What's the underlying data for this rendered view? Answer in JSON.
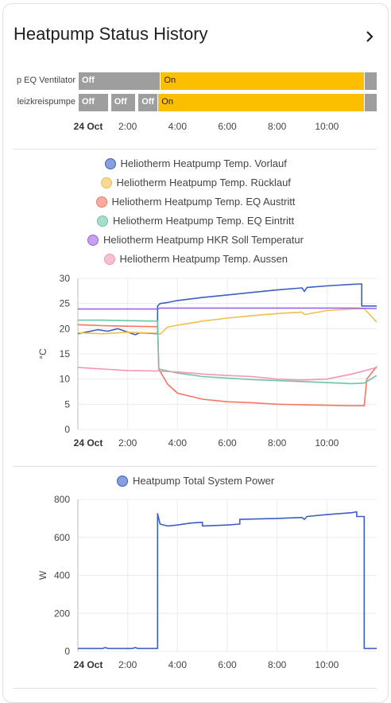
{
  "card": {
    "title": "Heatpump Status History"
  },
  "timeline": {
    "rows": [
      {
        "label": "p EQ Ventilator",
        "segments": [
          {
            "state": "Off",
            "start": 0.0,
            "end": 3.3
          },
          {
            "state": "On",
            "start": 3.3,
            "end": 11.5
          },
          {
            "state": "",
            "start": 11.5,
            "end": 12.0
          }
        ]
      },
      {
        "label": "leizkreispumpe",
        "segments": [
          {
            "state": "Off",
            "start": 0.0,
            "end": 1.2
          },
          {
            "state": "Off",
            "start": 1.3,
            "end": 2.3
          },
          {
            "state": "Off",
            "start": 2.4,
            "end": 3.2
          },
          {
            "state": "On",
            "start": 3.2,
            "end": 11.5
          },
          {
            "state": "",
            "start": 11.5,
            "end": 12.0
          }
        ]
      }
    ],
    "colors": {
      "on": "#fcbf00",
      "off": "#9e9e9e"
    }
  },
  "x_ticks": [
    "24 Oct",
    "2:00",
    "4:00",
    "6:00",
    "8:00",
    "10:00"
  ],
  "x_tick_hours": [
    0,
    2,
    4,
    6,
    8,
    10
  ],
  "chart_data": [
    {
      "type": "line",
      "ylabel": "°C",
      "ylim": [
        0,
        30
      ],
      "yticks": [
        0,
        5,
        10,
        15,
        20,
        25,
        30
      ],
      "series": [
        {
          "name": "Heliotherm Heatpump Temp. Vorlauf",
          "color": "#3b5fc4",
          "points": [
            [
              0,
              19.0
            ],
            [
              0.8,
              19.8
            ],
            [
              1.2,
              19.5
            ],
            [
              1.6,
              20.0
            ],
            [
              2.3,
              18.8
            ],
            [
              2.5,
              19.2
            ],
            [
              3.2,
              19.0
            ],
            [
              3.2,
              24.5
            ],
            [
              3.3,
              25.0
            ],
            [
              3.6,
              25.2
            ],
            [
              4.0,
              25.6
            ],
            [
              5.0,
              26.2
            ],
            [
              6.0,
              26.7
            ],
            [
              7.0,
              27.2
            ],
            [
              8.0,
              27.7
            ],
            [
              9.0,
              28.1
            ],
            [
              9.1,
              27.4
            ],
            [
              9.2,
              28.2
            ],
            [
              10.0,
              28.5
            ],
            [
              11.0,
              28.8
            ],
            [
              11.4,
              28.9
            ],
            [
              11.4,
              24.5
            ],
            [
              12.0,
              24.5
            ]
          ]
        },
        {
          "name": "Heliotherm Heatpump Temp. Rücklauf",
          "color": "#f2be4e",
          "points": [
            [
              0,
              19.2
            ],
            [
              1.0,
              19.0
            ],
            [
              2.0,
              19.3
            ],
            [
              3.2,
              19.1
            ],
            [
              3.3,
              18.9
            ],
            [
              3.6,
              20.3
            ],
            [
              4.0,
              20.7
            ],
            [
              5.0,
              21.5
            ],
            [
              6.0,
              22.1
            ],
            [
              7.0,
              22.6
            ],
            [
              8.0,
              23.0
            ],
            [
              9.0,
              23.3
            ],
            [
              9.1,
              22.8
            ],
            [
              10.0,
              23.6
            ],
            [
              11.0,
              23.9
            ],
            [
              11.5,
              24.0
            ],
            [
              12.0,
              21.3
            ]
          ]
        },
        {
          "name": "Heliotherm Heatpump Temp. EQ Austritt",
          "color": "#f47560",
          "points": [
            [
              0,
              20.8
            ],
            [
              1.0,
              20.6
            ],
            [
              2.0,
              20.5
            ],
            [
              3.2,
              20.4
            ],
            [
              3.25,
              12.0
            ],
            [
              3.6,
              9.0
            ],
            [
              4.0,
              7.2
            ],
            [
              5.0,
              6.0
            ],
            [
              6.0,
              5.5
            ],
            [
              7.0,
              5.3
            ],
            [
              8.0,
              5.0
            ],
            [
              9.0,
              4.9
            ],
            [
              10.0,
              4.8
            ],
            [
              11.0,
              4.7
            ],
            [
              11.5,
              4.7
            ],
            [
              11.6,
              10.0
            ],
            [
              12.0,
              12.5
            ]
          ]
        },
        {
          "name": "Heliotherm Heatpump Temp. EQ Eintritt",
          "color": "#6cc6a6",
          "points": [
            [
              0,
              21.7
            ],
            [
              1.0,
              21.7
            ],
            [
              2.0,
              21.6
            ],
            [
              3.2,
              21.5
            ],
            [
              3.25,
              12.0
            ],
            [
              4.0,
              11.2
            ],
            [
              5.0,
              10.5
            ],
            [
              6.0,
              10.2
            ],
            [
              7.0,
              9.9
            ],
            [
              8.0,
              9.7
            ],
            [
              9.0,
              9.5
            ],
            [
              10.0,
              9.3
            ],
            [
              11.0,
              9.1
            ],
            [
              11.5,
              9.2
            ],
            [
              12.0,
              10.7
            ]
          ]
        },
        {
          "name": "Heliotherm Heatpump HKR Soll Temperatur",
          "color": "#9e63e8",
          "points": [
            [
              0,
              23.9
            ],
            [
              3.2,
              23.9
            ],
            [
              3.3,
              24.1
            ],
            [
              6.0,
              24.1
            ],
            [
              9.0,
              24.1
            ],
            [
              11.0,
              24.1
            ],
            [
              12.0,
              24.0
            ]
          ]
        },
        {
          "name": "Heliotherm Heatpump Temp. Aussen",
          "color": "#f495b5",
          "points": [
            [
              0,
              12.3
            ],
            [
              1.0,
              12.0
            ],
            [
              2.0,
              11.7
            ],
            [
              3.2,
              11.6
            ],
            [
              4.0,
              11.4
            ],
            [
              5.0,
              11.0
            ],
            [
              6.0,
              10.7
            ],
            [
              7.0,
              10.5
            ],
            [
              8.0,
              10.0
            ],
            [
              9.0,
              9.8
            ],
            [
              10.0,
              10.0
            ],
            [
              11.0,
              11.0
            ],
            [
              12.0,
              12.3
            ]
          ]
        }
      ]
    },
    {
      "type": "line",
      "ylabel": "W",
      "ylim": [
        0,
        800
      ],
      "yticks": [
        0,
        200,
        400,
        600,
        800
      ],
      "series": [
        {
          "name": "Heatpump Total System Power",
          "color": "#3b5fc4",
          "points": [
            [
              0,
              15
            ],
            [
              1.0,
              15
            ],
            [
              1.1,
              20
            ],
            [
              1.2,
              15
            ],
            [
              2.2,
              15
            ],
            [
              2.3,
              20
            ],
            [
              2.4,
              15
            ],
            [
              3.2,
              15
            ],
            [
              3.2,
              725
            ],
            [
              3.3,
              670
            ],
            [
              3.6,
              660
            ],
            [
              4.0,
              665
            ],
            [
              4.5,
              675
            ],
            [
              5.0,
              680
            ],
            [
              5.0,
              660
            ],
            [
              6.0,
              665
            ],
            [
              6.5,
              670
            ],
            [
              6.5,
              695
            ],
            [
              8.0,
              700
            ],
            [
              9.0,
              705
            ],
            [
              9.1,
              695
            ],
            [
              9.2,
              710
            ],
            [
              10.0,
              720
            ],
            [
              11.0,
              730
            ],
            [
              11.2,
              735
            ],
            [
              11.2,
              710
            ],
            [
              11.5,
              710
            ],
            [
              11.5,
              15
            ],
            [
              12.0,
              15
            ]
          ]
        }
      ]
    }
  ]
}
